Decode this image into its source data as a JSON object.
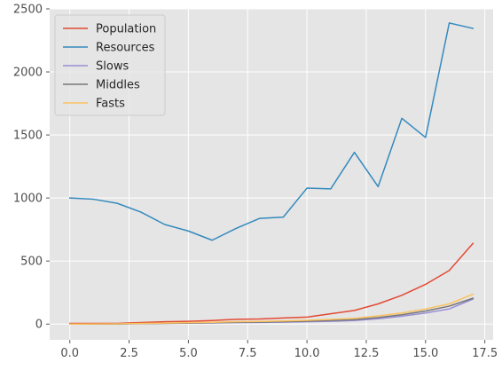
{
  "chart_data": {
    "type": "line",
    "title": "",
    "xlabel": "",
    "ylabel": "",
    "xlim": [
      -0.85,
      17.85
    ],
    "ylim": [
      -125,
      2500
    ],
    "grid": true,
    "legend_position": "top-left",
    "x_ticks": [
      0.0,
      2.5,
      5.0,
      7.5,
      10.0,
      12.5,
      15.0,
      17.5
    ],
    "x_tick_labels": [
      "0.0",
      "2.5",
      "5.0",
      "7.5",
      "10.0",
      "12.5",
      "15.0",
      "17.5"
    ],
    "y_ticks": [
      0,
      500,
      1000,
      1500,
      2000,
      2500
    ],
    "y_tick_labels": [
      "0",
      "500",
      "1000",
      "1500",
      "2000",
      "2500"
    ],
    "x": [
      0,
      1,
      2,
      3,
      4,
      5,
      6,
      7,
      8,
      9,
      10,
      11,
      12,
      13,
      14,
      15,
      16,
      17
    ],
    "series": [
      {
        "name": "Population",
        "color": "#E24A33",
        "values": [
          5,
          5,
          5,
          12,
          18,
          22,
          28,
          38,
          40,
          48,
          55,
          82,
          108,
          160,
          228,
          315,
          425,
          640
        ]
      },
      {
        "name": "Resources",
        "color": "#348ABD",
        "values": [
          1000,
          990,
          958,
          888,
          790,
          738,
          665,
          758,
          838,
          848,
          1078,
          1072,
          1362,
          1090,
          1632,
          1480,
          2388,
          2345
        ]
      },
      {
        "name": "Slows",
        "color": "#988ED5",
        "values": [
          0,
          0,
          0,
          3,
          5,
          7,
          9,
          11,
          13,
          15,
          18,
          22,
          28,
          42,
          62,
          88,
          120,
          198
        ]
      },
      {
        "name": "Middles",
        "color": "#777777",
        "values": [
          0,
          0,
          1,
          4,
          6,
          8,
          11,
          14,
          16,
          19,
          23,
          29,
          35,
          52,
          74,
          104,
          142,
          205
        ]
      },
      {
        "name": "Fasts",
        "color": "#FBC15E",
        "values": [
          0,
          1,
          2,
          5,
          8,
          11,
          14,
          18,
          21,
          25,
          30,
          37,
          46,
          65,
          88,
          120,
          160,
          238
        ]
      }
    ]
  }
}
